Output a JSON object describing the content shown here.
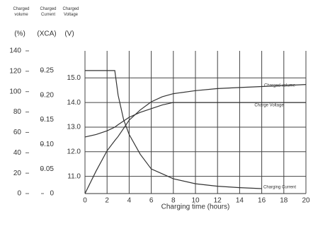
{
  "chart_data": {
    "type": "line",
    "axis_headers": [
      "Charged volume",
      "Charged Current",
      "Charged Voltage"
    ],
    "axis_units": [
      "(%)",
      "(XCA)",
      "(V)"
    ],
    "xlabel": "Charging time (hours)",
    "x": [
      0,
      1,
      2,
      2.7,
      3,
      3.5,
      4,
      5,
      6,
      7,
      8,
      10,
      12,
      14,
      16,
      18,
      20
    ],
    "xlim": [
      0,
      20
    ],
    "xticks": [
      0,
      2,
      4,
      6,
      8,
      10,
      12,
      14,
      16,
      18,
      20
    ],
    "ylim": [
      0,
      140
    ],
    "yticks": [
      0,
      20,
      40,
      60,
      80,
      100,
      120,
      140
    ],
    "y2lim": [
      0,
      0.29
    ],
    "y2ticks": [
      0,
      0.05,
      {
        "value": 0.1,
        "label": "0.10"
      },
      0.15,
      {
        "value": 0.2,
        "label": "0.20"
      },
      0.25
    ],
    "y3lim": [
      10.3,
      16.1
    ],
    "y3ticks": [
      {
        "value": 11,
        "label": "11.0"
      },
      {
        "value": 12,
        "label": "12.0"
      },
      {
        "value": 13,
        "label": "13.0"
      },
      {
        "value": 14,
        "label": "14.0"
      },
      {
        "value": 15,
        "label": "15.0"
      }
    ],
    "grid": true,
    "series": [
      {
        "name": "Charged volume",
        "color": "#333333",
        "axis": "y",
        "values": [
          0,
          22,
          42,
          52,
          56,
          64,
          72,
          82,
          90,
          95,
          98,
          101,
          103,
          104,
          105,
          106,
          107
        ]
      },
      {
        "name": "Charging Current",
        "color": "#333333",
        "axis": "y2",
        "values": [
          0.25,
          0.25,
          0.25,
          0.25,
          0.2,
          0.15,
          0.12,
          0.08,
          0.05,
          0.04,
          0.03,
          0.02,
          0.015,
          0.012,
          0.01,
          null,
          null
        ]
      },
      {
        "name": "Charge Voltage",
        "color": "#333333",
        "axis": "y3",
        "values": [
          12.6,
          12.7,
          12.85,
          13.0,
          13.1,
          13.25,
          13.4,
          13.6,
          13.75,
          13.9,
          14.0,
          14.0,
          14.0,
          14.0,
          14.0,
          14.0,
          14.0
        ]
      }
    ]
  }
}
